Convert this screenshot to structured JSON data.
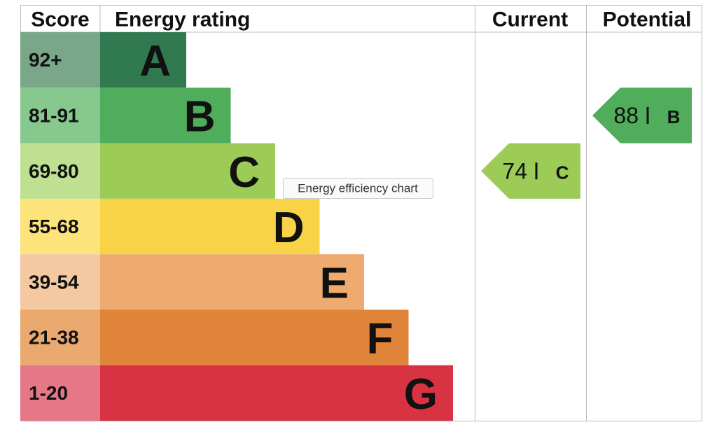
{
  "header": {
    "score": "Score",
    "rating": "Energy rating",
    "current": "Current",
    "potential": "Potential"
  },
  "bands": [
    {
      "score": "92+",
      "letter": "A",
      "color": "#317a50",
      "score_color": "#7aa689"
    },
    {
      "score": "81-91",
      "letter": "B",
      "color": "#4fad5c",
      "score_color": "#86c88e"
    },
    {
      "score": "69-80",
      "letter": "C",
      "color": "#9dcb57",
      "score_color": "#bfdf91"
    },
    {
      "score": "55-68",
      "letter": "D",
      "color": "#f8d347",
      "score_color": "#fce47a"
    },
    {
      "score": "39-54",
      "letter": "E",
      "color": "#efaa6f",
      "score_color": "#f4c9a2"
    },
    {
      "score": "21-38",
      "letter": "F",
      "color": "#e0843a",
      "score_color": "#eaa96f"
    },
    {
      "score": "1-20",
      "letter": "G",
      "color": "#d83343",
      "score_color": "#e57787"
    }
  ],
  "current": {
    "value": 74,
    "rating": "C",
    "color": "#9dcb57"
  },
  "potential": {
    "value": 88,
    "rating": "B",
    "color": "#4fad5c"
  },
  "tooltip": "Energy efficiency chart"
}
